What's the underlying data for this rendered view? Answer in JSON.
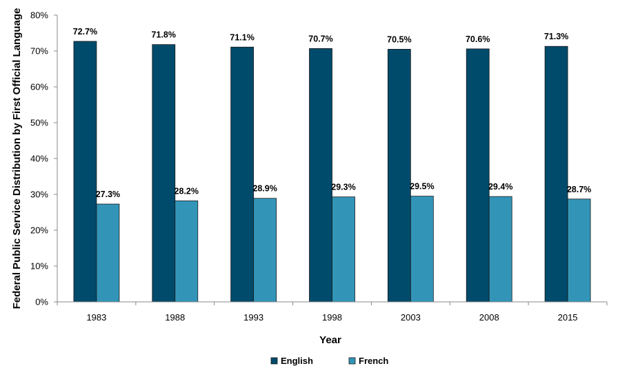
{
  "chart_data": {
    "type": "bar",
    "title": "",
    "xlabel": "Year",
    "ylabel": "Federal Public Service Distribution by First Official Language",
    "categories": [
      "1983",
      "1988",
      "1993",
      "1998",
      "2003",
      "2008",
      "2015"
    ],
    "series": [
      {
        "name": "English",
        "color": "#004a6b",
        "values": [
          72.7,
          71.8,
          71.1,
          70.7,
          70.5,
          70.6,
          71.3
        ],
        "labels": [
          "72.7%",
          "71.8%",
          "71.1%",
          "70.7%",
          "70.5%",
          "70.6%",
          "71.3%"
        ]
      },
      {
        "name": "French",
        "color": "#3295b8",
        "values": [
          27.3,
          28.2,
          28.9,
          29.3,
          29.5,
          29.4,
          28.7
        ],
        "labels": [
          "27.3%",
          "28.2%",
          "28.9%",
          "29.3%",
          "29.5%",
          "29.4%",
          "28.7%"
        ]
      }
    ],
    "ylim": [
      0,
      80
    ],
    "yticks": [
      "0%",
      "10%",
      "20%",
      "30%",
      "40%",
      "50%",
      "60%",
      "70%",
      "80%"
    ],
    "grid": false,
    "legend_position": "bottom"
  }
}
